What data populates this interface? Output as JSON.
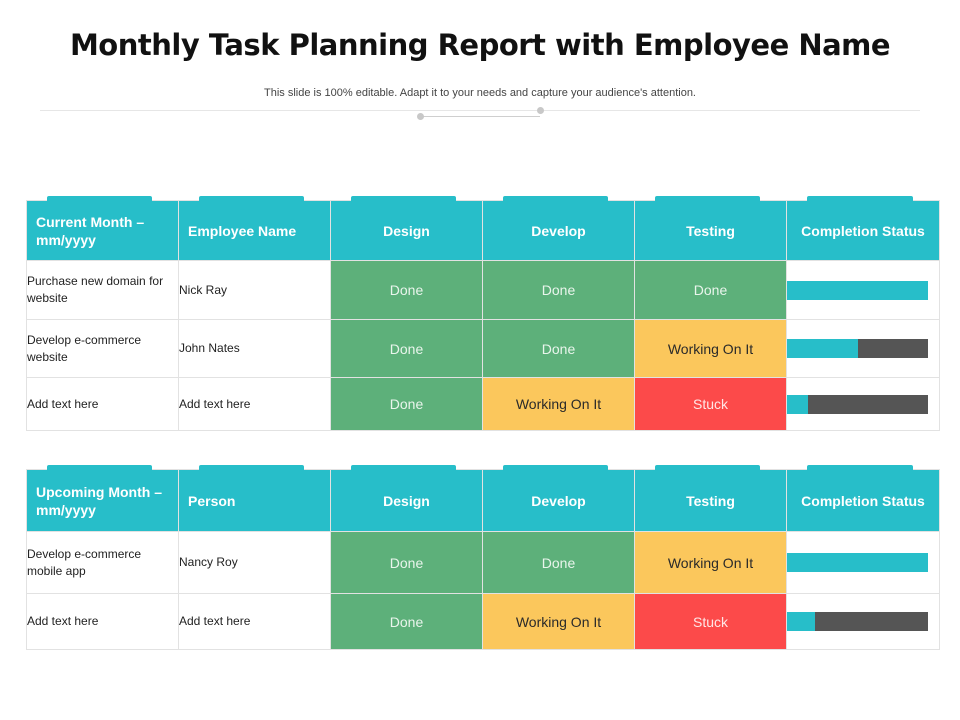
{
  "title": "Monthly Task Planning Report with Employee Name",
  "subtitle": "This slide is 100% editable. Adapt it to your needs and capture your audience's attention.",
  "colors": {
    "header": "#27bec9",
    "done": "#5db07a",
    "working": "#fbc75c",
    "stuck": "#fc4a4a",
    "bar_track": "#555555"
  },
  "table1": {
    "headers": [
      "Current Month – mm/yyyy",
      "Employee Name",
      "Design",
      "Develop",
      "Testing",
      "Completion Status"
    ],
    "rows": [
      {
        "task": "Purchase new domain for website",
        "person": "Nick Ray",
        "design": "Done",
        "develop": "Done",
        "testing": "Done",
        "completion": 1.0
      },
      {
        "task": "Develop e-commerce website",
        "person": "John  Nates",
        "design": "Done",
        "develop": "Done",
        "testing": "Working On It",
        "completion": 0.5
      },
      {
        "task": "Add text here",
        "person": "Add text here",
        "design": "Done",
        "develop": "Working On It",
        "testing": "Stuck",
        "completion": 0.15
      }
    ]
  },
  "table2": {
    "headers": [
      "Upcoming Month – mm/yyyy",
      "Person",
      "Design",
      "Develop",
      "Testing",
      "Completion Status"
    ],
    "rows": [
      {
        "task": "Develop e-commerce mobile app",
        "person": "Nancy Roy",
        "design": "Done",
        "develop": "Done",
        "testing": "Working On It",
        "completion": 1.0
      },
      {
        "task": "Add text here",
        "person": "Add text here",
        "design": "Done",
        "develop": "Working On It",
        "testing": "Stuck",
        "completion": 0.2
      }
    ]
  }
}
